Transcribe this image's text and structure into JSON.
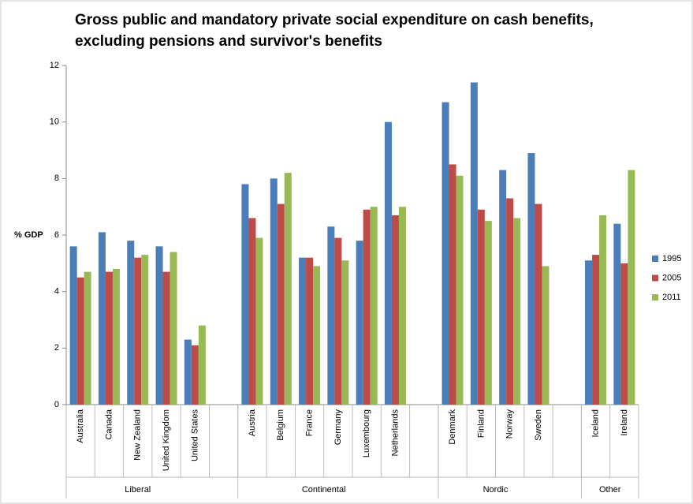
{
  "chart_data": {
    "type": "bar",
    "title": [
      "Gross public and mandatory private social expenditure on cash benefits,",
      "excluding pensions and survivor's benefits"
    ],
    "y_label": "% GDP",
    "categories": [
      "Australia",
      "Canada",
      "New Zealand",
      "United Kingdom",
      "United States",
      null,
      "Austria",
      "Belgium",
      "France",
      "Germany",
      "Luxembourg",
      "Netherlands",
      null,
      "Denmark",
      "Finland",
      "Norway",
      "Sweden",
      null,
      "Iceland",
      "Ireland"
    ],
    "groups": [
      {
        "name": "Liberal",
        "size": 6
      },
      {
        "name": "Continental",
        "size": 7
      },
      {
        "name": "Nordic",
        "size": 5
      },
      {
        "name": "Other",
        "size": 2
      }
    ],
    "series": [
      {
        "name": "1995",
        "color": "#4a7ebb",
        "values": [
          5.6,
          6.1,
          5.8,
          5.6,
          2.3,
          null,
          7.8,
          8.0,
          5.2,
          6.3,
          5.8,
          10.0,
          null,
          10.7,
          11.4,
          8.3,
          8.9,
          null,
          5.1,
          6.4
        ]
      },
      {
        "name": "2005",
        "color": "#be4b48",
        "values": [
          4.5,
          4.7,
          5.2,
          4.7,
          2.1,
          null,
          6.6,
          7.1,
          5.2,
          5.9,
          6.9,
          6.7,
          null,
          8.5,
          6.9,
          7.3,
          7.1,
          null,
          5.3,
          5.0
        ]
      },
      {
        "name": "2011",
        "color": "#98b954",
        "values": [
          4.7,
          4.8,
          5.3,
          5.4,
          2.8,
          null,
          5.9,
          8.2,
          4.9,
          5.1,
          7.0,
          7.0,
          null,
          8.1,
          6.5,
          6.6,
          4.9,
          null,
          6.7,
          8.3
        ]
      }
    ],
    "ylim": [
      0,
      12
    ],
    "yticks": [
      0,
      2,
      4,
      6,
      8,
      10,
      12
    ],
    "grid": false,
    "legend": "right"
  }
}
